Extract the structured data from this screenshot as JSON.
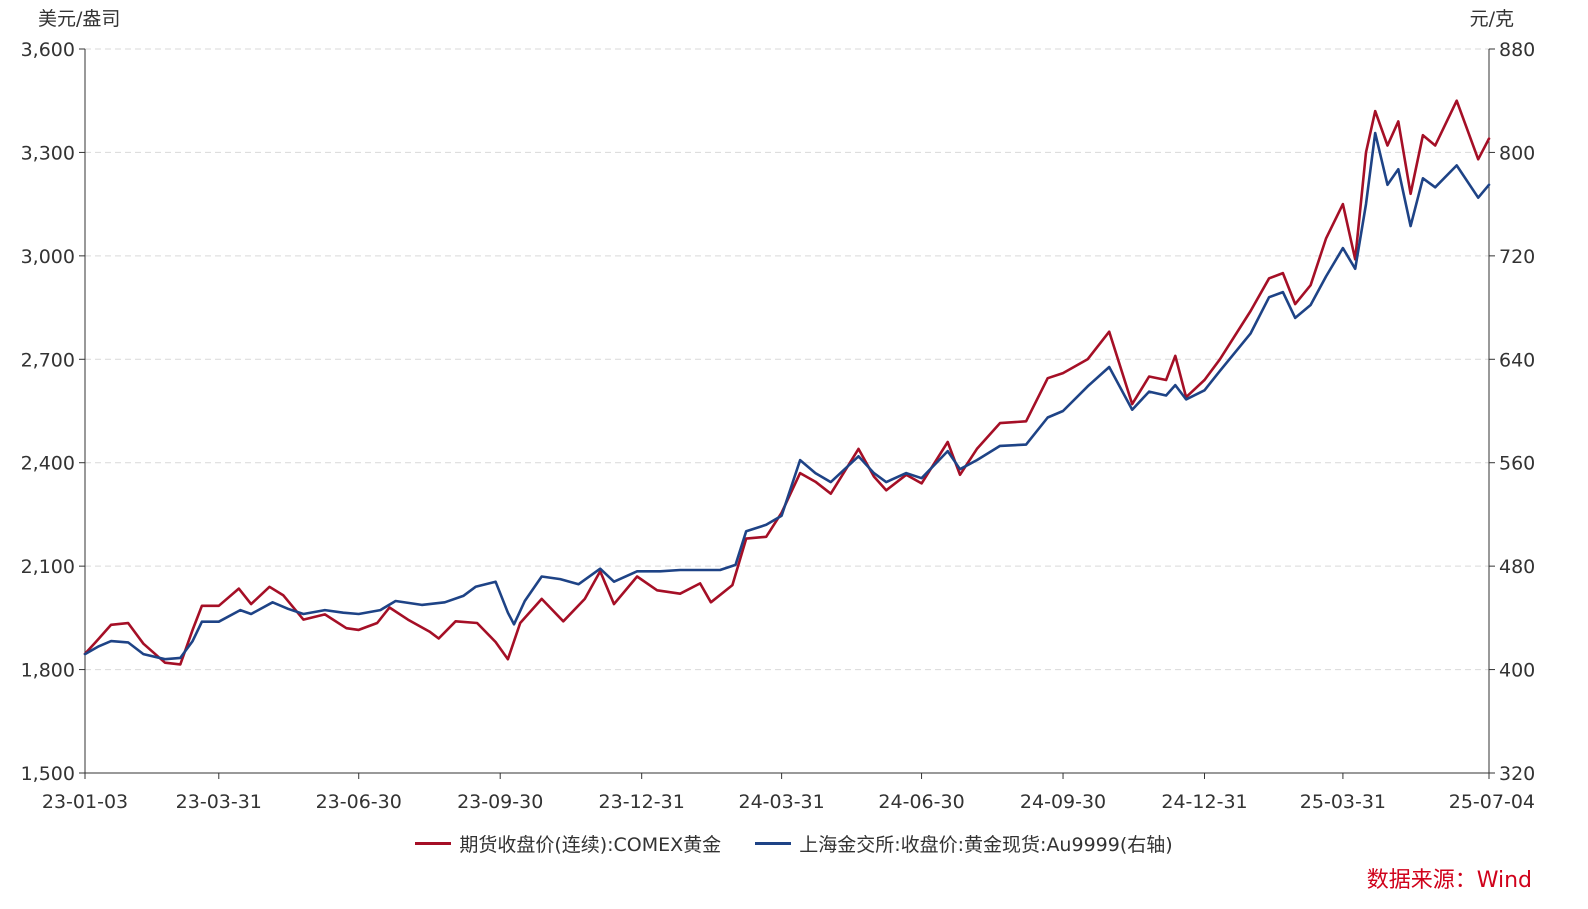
{
  "chart_data": {
    "type": "line",
    "left_unit": "美元/盎司",
    "right_unit": "元/克",
    "y_left": {
      "min": 1500,
      "max": 3600,
      "ticks": [
        1500,
        1800,
        2100,
        2400,
        2700,
        3000,
        3300,
        3600
      ],
      "tick_labels": [
        "1,500",
        "1,800",
        "2,100",
        "2,400",
        "2,700",
        "3,000",
        "3,300",
        "3,600"
      ]
    },
    "y_right": {
      "min": 320,
      "max": 880,
      "ticks": [
        320,
        400,
        480,
        560,
        640,
        720,
        800,
        880
      ],
      "tick_labels": [
        "320",
        "400",
        "480",
        "560",
        "640",
        "720",
        "800",
        "880"
      ]
    },
    "x_range": [
      "2023-01-03",
      "2025-07-04"
    ],
    "x_ticks": [
      "23-01-03",
      "23-03-31",
      "23-06-30",
      "23-09-30",
      "23-12-31",
      "24-03-31",
      "24-06-30",
      "24-09-30",
      "24-12-31",
      "25-03-31",
      "25-07-04"
    ],
    "x_tick_dates": [
      "2023-01-03",
      "2023-03-31",
      "2023-06-30",
      "2023-09-30",
      "2023-12-31",
      "2024-03-31",
      "2024-06-30",
      "2024-09-30",
      "2024-12-31",
      "2025-03-31",
      "2025-07-04"
    ],
    "grid": "horizontal-dashed",
    "legend_position": "bottom",
    "series": [
      {
        "name": "期货收盘价(连续):COMEX黄金",
        "axis": "left",
        "color": "#a50f26",
        "points": [
          [
            "2023-01-03",
            1846
          ],
          [
            "2023-01-10",
            1880
          ],
          [
            "2023-01-20",
            1930
          ],
          [
            "2023-01-31",
            1935
          ],
          [
            "2023-02-10",
            1875
          ],
          [
            "2023-02-24",
            1820
          ],
          [
            "2023-03-06",
            1815
          ],
          [
            "2023-03-14",
            1915
          ],
          [
            "2023-03-20",
            1985
          ],
          [
            "2023-03-31",
            1985
          ],
          [
            "2023-04-13",
            2035
          ],
          [
            "2023-04-21",
            1990
          ],
          [
            "2023-05-03",
            2040
          ],
          [
            "2023-05-12",
            2015
          ],
          [
            "2023-05-25",
            1945
          ],
          [
            "2023-06-08",
            1960
          ],
          [
            "2023-06-22",
            1920
          ],
          [
            "2023-06-30",
            1915
          ],
          [
            "2023-07-12",
            1935
          ],
          [
            "2023-07-20",
            1980
          ],
          [
            "2023-08-01",
            1945
          ],
          [
            "2023-08-15",
            1910
          ],
          [
            "2023-08-21",
            1890
          ],
          [
            "2023-09-01",
            1940
          ],
          [
            "2023-09-15",
            1935
          ],
          [
            "2023-09-27",
            1880
          ],
          [
            "2023-10-05",
            1830
          ],
          [
            "2023-10-13",
            1935
          ],
          [
            "2023-10-27",
            2005
          ],
          [
            "2023-11-10",
            1940
          ],
          [
            "2023-11-24",
            2005
          ],
          [
            "2023-12-04",
            2085
          ],
          [
            "2023-12-13",
            1990
          ],
          [
            "2023-12-28",
            2070
          ],
          [
            "2024-01-10",
            2030
          ],
          [
            "2024-01-25",
            2020
          ],
          [
            "2024-02-07",
            2050
          ],
          [
            "2024-02-14",
            1995
          ],
          [
            "2024-02-28",
            2045
          ],
          [
            "2024-03-08",
            2180
          ],
          [
            "2024-03-21",
            2185
          ],
          [
            "2024-03-31",
            2255
          ],
          [
            "2024-04-12",
            2370
          ],
          [
            "2024-04-22",
            2345
          ],
          [
            "2024-05-02",
            2310
          ],
          [
            "2024-05-20",
            2440
          ],
          [
            "2024-05-30",
            2360
          ],
          [
            "2024-06-07",
            2320
          ],
          [
            "2024-06-20",
            2365
          ],
          [
            "2024-06-30",
            2340
          ],
          [
            "2024-07-17",
            2460
          ],
          [
            "2024-07-25",
            2365
          ],
          [
            "2024-08-05",
            2440
          ],
          [
            "2024-08-20",
            2515
          ],
          [
            "2024-09-06",
            2520
          ],
          [
            "2024-09-20",
            2645
          ],
          [
            "2024-09-30",
            2660
          ],
          [
            "2024-10-16",
            2700
          ],
          [
            "2024-10-30",
            2780
          ],
          [
            "2024-11-14",
            2570
          ],
          [
            "2024-11-25",
            2650
          ],
          [
            "2024-12-06",
            2640
          ],
          [
            "2024-12-12",
            2710
          ],
          [
            "2024-12-19",
            2590
          ],
          [
            "2024-12-31",
            2640
          ],
          [
            "2025-01-10",
            2700
          ],
          [
            "2025-01-30",
            2840
          ],
          [
            "2025-02-11",
            2935
          ],
          [
            "2025-02-20",
            2950
          ],
          [
            "2025-02-28",
            2860
          ],
          [
            "2025-03-10",
            2915
          ],
          [
            "2025-03-20",
            3050
          ],
          [
            "2025-03-31",
            3150
          ],
          [
            "2025-04-08",
            2990
          ],
          [
            "2025-04-15",
            3300
          ],
          [
            "2025-04-21",
            3420
          ],
          [
            "2025-04-29",
            3320
          ],
          [
            "2025-05-06",
            3390
          ],
          [
            "2025-05-14",
            3180
          ],
          [
            "2025-05-22",
            3350
          ],
          [
            "2025-05-30",
            3320
          ],
          [
            "2025-06-13",
            3450
          ],
          [
            "2025-06-27",
            3280
          ],
          [
            "2025-07-04",
            3340
          ]
        ]
      },
      {
        "name": "上海金交所:收盘价:黄金现货:Au9999(右轴)",
        "axis": "right",
        "color": "#1e4386",
        "points": [
          [
            "2023-01-03",
            412
          ],
          [
            "2023-01-12",
            418
          ],
          [
            "2023-01-20",
            422
          ],
          [
            "2023-01-31",
            421
          ],
          [
            "2023-02-10",
            412
          ],
          [
            "2023-02-24",
            408
          ],
          [
            "2023-03-06",
            409
          ],
          [
            "2023-03-14",
            422
          ],
          [
            "2023-03-20",
            437
          ],
          [
            "2023-03-31",
            437
          ],
          [
            "2023-04-14",
            446
          ],
          [
            "2023-04-21",
            443
          ],
          [
            "2023-05-05",
            452
          ],
          [
            "2023-05-15",
            447
          ],
          [
            "2023-05-25",
            443
          ],
          [
            "2023-06-08",
            446
          ],
          [
            "2023-06-20",
            444
          ],
          [
            "2023-06-30",
            443
          ],
          [
            "2023-07-14",
            446
          ],
          [
            "2023-07-24",
            453
          ],
          [
            "2023-08-10",
            450
          ],
          [
            "2023-08-25",
            452
          ],
          [
            "2023-09-06",
            457
          ],
          [
            "2023-09-14",
            464
          ],
          [
            "2023-09-27",
            468
          ],
          [
            "2023-10-05",
            444
          ],
          [
            "2023-10-09",
            435
          ],
          [
            "2023-10-16",
            453
          ],
          [
            "2023-10-27",
            472
          ],
          [
            "2023-11-08",
            470
          ],
          [
            "2023-11-20",
            466
          ],
          [
            "2023-12-04",
            478
          ],
          [
            "2023-12-13",
            468
          ],
          [
            "2023-12-28",
            476
          ],
          [
            "2024-01-12",
            476
          ],
          [
            "2024-01-25",
            477
          ],
          [
            "2024-02-07",
            477
          ],
          [
            "2024-02-20",
            477
          ],
          [
            "2024-03-01",
            481
          ],
          [
            "2024-03-08",
            507
          ],
          [
            "2024-03-21",
            512
          ],
          [
            "2024-03-31",
            519
          ],
          [
            "2024-04-12",
            562
          ],
          [
            "2024-04-22",
            552
          ],
          [
            "2024-05-02",
            545
          ],
          [
            "2024-05-20",
            565
          ],
          [
            "2024-05-30",
            552
          ],
          [
            "2024-06-07",
            545
          ],
          [
            "2024-06-20",
            552
          ],
          [
            "2024-06-30",
            548
          ],
          [
            "2024-07-17",
            569
          ],
          [
            "2024-07-25",
            555
          ],
          [
            "2024-08-05",
            562
          ],
          [
            "2024-08-20",
            573
          ],
          [
            "2024-09-06",
            574
          ],
          [
            "2024-09-20",
            595
          ],
          [
            "2024-09-30",
            600
          ],
          [
            "2024-10-16",
            619
          ],
          [
            "2024-10-30",
            634
          ],
          [
            "2024-11-14",
            601
          ],
          [
            "2024-11-25",
            615
          ],
          [
            "2024-12-06",
            612
          ],
          [
            "2024-12-12",
            620
          ],
          [
            "2024-12-19",
            609
          ],
          [
            "2024-12-31",
            616
          ],
          [
            "2025-01-10",
            631
          ],
          [
            "2025-01-30",
            660
          ],
          [
            "2025-02-11",
            688
          ],
          [
            "2025-02-20",
            692
          ],
          [
            "2025-02-28",
            672
          ],
          [
            "2025-03-10",
            682
          ],
          [
            "2025-03-20",
            704
          ],
          [
            "2025-03-31",
            726
          ],
          [
            "2025-04-08",
            710
          ],
          [
            "2025-04-15",
            760
          ],
          [
            "2025-04-21",
            815
          ],
          [
            "2025-04-29",
            775
          ],
          [
            "2025-05-06",
            787
          ],
          [
            "2025-05-14",
            743
          ],
          [
            "2025-05-22",
            780
          ],
          [
            "2025-05-30",
            773
          ],
          [
            "2025-06-13",
            790
          ],
          [
            "2025-06-27",
            765
          ],
          [
            "2025-07-04",
            775
          ]
        ]
      }
    ]
  },
  "source_label": "数据来源：Wind"
}
